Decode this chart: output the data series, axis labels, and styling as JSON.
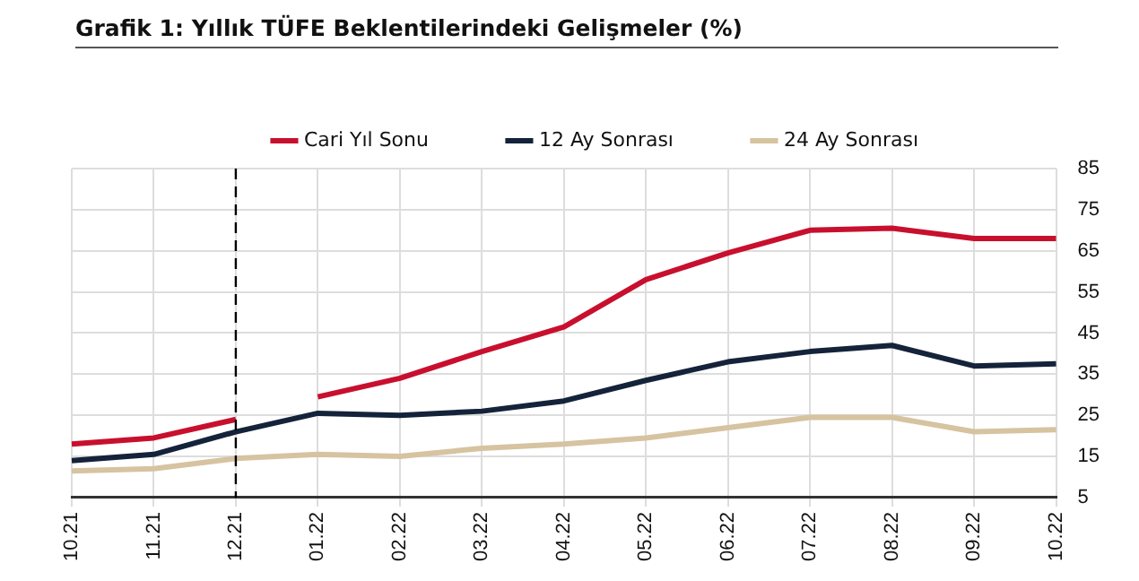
{
  "chart_data": {
    "type": "line",
    "title": "Grafik 1: Yıllık TÜFE Beklentilerindeki Gelişmeler (%)",
    "categories": [
      "10.21",
      "11.21",
      "12.21",
      "01.22",
      "02.22",
      "03.22",
      "04.22",
      "05.22",
      "06.22",
      "07.22",
      "08.22",
      "09.22",
      "10.22"
    ],
    "series": [
      {
        "name": "Cari Yıl Sonu",
        "color": "#c8102e",
        "values": [
          18,
          19.5,
          24,
          null,
          null,
          null,
          null,
          null,
          null,
          null,
          null,
          null,
          null
        ]
      },
      {
        "color": "#c8102e",
        "values": [
          null,
          null,
          null,
          29.5,
          34,
          40.5,
          46.5,
          58,
          64.5,
          70,
          70.5,
          68,
          68
        ]
      },
      {
        "name": "12 Ay Sonrası",
        "color": "#14233a",
        "values": [
          14,
          15.5,
          21,
          25.5,
          25,
          26,
          28.5,
          33.5,
          38,
          40.5,
          42,
          37,
          37.5
        ]
      },
      {
        "name": "24 Ay Sonrası",
        "color": "#d6c3a0",
        "values": [
          11.5,
          12,
          14.5,
          15.5,
          15,
          17,
          18,
          19.5,
          22,
          24.5,
          24.5,
          21,
          21.5
        ]
      }
    ],
    "ylim": [
      5,
      85
    ],
    "yticks": [
      5,
      15,
      25,
      35,
      45,
      55,
      65,
      75,
      85
    ],
    "grid": true,
    "legend": "top",
    "marker": "none",
    "line_style": "solid",
    "ref_lines": [
      {
        "axis": "x",
        "value": "12.21",
        "color": "#000000",
        "line_style": "dashed"
      }
    ]
  }
}
